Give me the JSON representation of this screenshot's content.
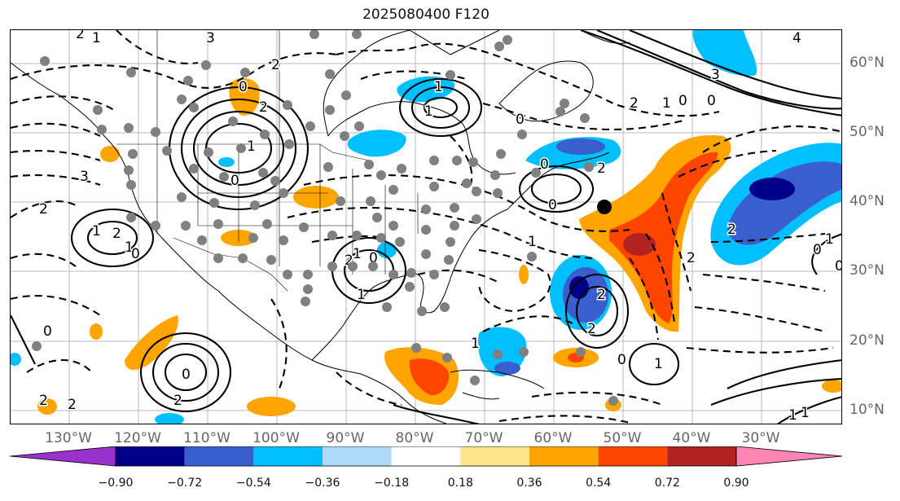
{
  "title": "2025080400 F120",
  "map": {
    "lon_labels": [
      "130°W",
      "120°W",
      "110°W",
      "100°W",
      "90°W",
      "80°W",
      "70°W",
      "60°W",
      "50°W",
      "40°W",
      "30°W"
    ],
    "lat_labels": [
      "60°N",
      "50°N",
      "40°N",
      "30°N",
      "20°N",
      "10°N"
    ],
    "contour_labels": [
      "2",
      "1",
      "3",
      "2",
      "0",
      "2",
      "1",
      "0",
      "4",
      "3",
      "2",
      "1",
      "0",
      "0",
      "1",
      "1",
      "3",
      "2",
      "2",
      "1",
      "0",
      "1",
      "0",
      "0",
      "2",
      "0",
      "1",
      "2",
      "2",
      "1",
      "0",
      "0",
      "2",
      "1",
      "1",
      "0",
      "2",
      "2",
      "0",
      "1",
      "1",
      "0",
      "2",
      "2",
      "1",
      "1",
      "0",
      "2"
    ]
  },
  "colorbar": {
    "colors": [
      "#9932cc",
      "#00008b",
      "#3a5fcd",
      "#00bfff",
      "#add8f6",
      "#ffffff",
      "#fde68a",
      "#ffa500",
      "#ff4500",
      "#b22222",
      "#ff85b4"
    ],
    "tick_labels": [
      "−0.90",
      "−0.72",
      "−0.54",
      "−0.36",
      "−0.18",
      "0.18",
      "0.36",
      "0.54",
      "0.72",
      "0.90"
    ]
  }
}
